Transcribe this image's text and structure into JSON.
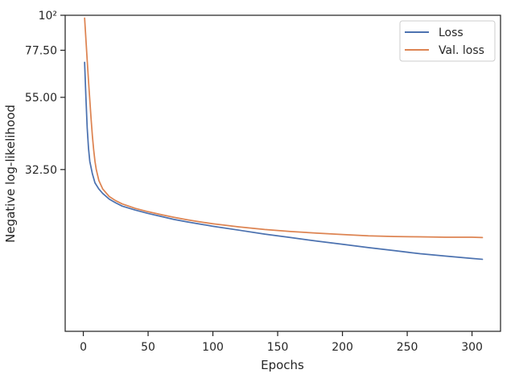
{
  "chart_data": {
    "type": "line",
    "xlabel": "Epochs",
    "ylabel": "Negative log-likelihood",
    "xlim": [
      -14,
      322
    ],
    "ylim": [
      10,
      100
    ],
    "y_scale": "log",
    "grid": false,
    "legend_position": "top-right",
    "x_ticks": [
      0,
      50,
      100,
      150,
      200,
      250,
      300
    ],
    "x_tick_labels": [
      "0",
      "50",
      "100",
      "150",
      "200",
      "250",
      "300"
    ],
    "y_ticks": [
      32.5,
      55,
      77.5,
      100
    ],
    "y_tick_labels": [
      "32.50",
      "55.00",
      "77.50",
      "10²"
    ],
    "series": [
      {
        "name": "Loss",
        "color": "#4c72b0",
        "x": [
          1,
          2,
          3,
          4,
          5,
          7,
          9,
          12,
          15,
          20,
          25,
          30,
          40,
          50,
          60,
          70,
          80,
          90,
          100,
          120,
          140,
          160,
          180,
          200,
          220,
          240,
          260,
          280,
          300,
          308
        ],
        "y": [
          71,
          55,
          44,
          38,
          34.5,
          31.5,
          29.5,
          28.2,
          27.3,
          26.2,
          25.5,
          24.9,
          24.2,
          23.6,
          23.1,
          22.6,
          22.2,
          21.85,
          21.5,
          20.9,
          20.3,
          19.8,
          19.3,
          18.85,
          18.4,
          18.0,
          17.6,
          17.3,
          17.0,
          16.9
        ]
      },
      {
        "name": "Val. loss",
        "color": "#dd8452",
        "x": [
          1,
          2,
          3,
          4,
          5,
          6,
          7,
          8,
          9,
          10,
          12,
          15,
          20,
          25,
          30,
          40,
          50,
          60,
          70,
          80,
          90,
          100,
          120,
          140,
          160,
          180,
          200,
          220,
          240,
          260,
          280,
          300,
          308
        ],
        "y": [
          98,
          84,
          72,
          62,
          54,
          47,
          41.5,
          37.5,
          34.5,
          32.5,
          30,
          28.2,
          26.7,
          25.9,
          25.3,
          24.5,
          23.9,
          23.4,
          22.95,
          22.55,
          22.2,
          21.9,
          21.4,
          21.0,
          20.7,
          20.45,
          20.25,
          20.05,
          19.95,
          19.9,
          19.85,
          19.85,
          19.8
        ]
      }
    ]
  }
}
